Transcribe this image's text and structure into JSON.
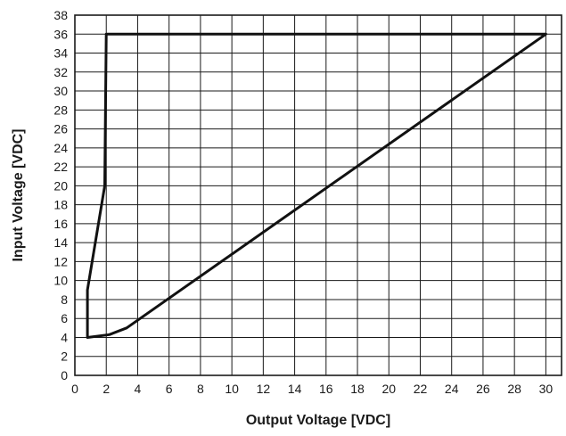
{
  "chart_data": {
    "type": "line",
    "title": "",
    "xlabel": "Output Voltage [VDC]",
    "ylabel": "Input Voltage [VDC]",
    "xlim": [
      0,
      31
    ],
    "ylim": [
      0,
      38
    ],
    "x_ticks": [
      0,
      2,
      4,
      6,
      8,
      10,
      12,
      14,
      16,
      18,
      20,
      22,
      24,
      26,
      28,
      30
    ],
    "y_ticks": [
      0,
      2,
      4,
      6,
      8,
      10,
      12,
      14,
      16,
      18,
      20,
      22,
      24,
      26,
      28,
      30,
      32,
      34,
      36,
      38
    ],
    "x_tick_labels": [
      "0",
      "2",
      "4",
      "6",
      "8",
      "10",
      "12",
      "14",
      "16",
      "18",
      "20",
      "22",
      "24",
      "26",
      "28",
      "30"
    ],
    "y_tick_labels": [
      "0",
      "2",
      "4",
      "6",
      "8",
      "10",
      "12",
      "14",
      "16",
      "18",
      "20",
      "22",
      "24",
      "26",
      "28",
      "30",
      "32",
      "34",
      "36",
      "38"
    ],
    "grid": true,
    "grid_step": {
      "x": 2,
      "y": 2
    },
    "series": [
      {
        "x": [
          0.8,
          0.8,
          1.9,
          2.0,
          30.0,
          3.3,
          2.2,
          0.8
        ],
        "y": [
          4.0,
          9.0,
          20.0,
          36.0,
          36.0,
          5.0,
          4.3,
          4.0
        ]
      }
    ],
    "colors": {
      "line": "#111111",
      "grid": "#1a1a1a",
      "text": "#1a1a1a"
    }
  }
}
